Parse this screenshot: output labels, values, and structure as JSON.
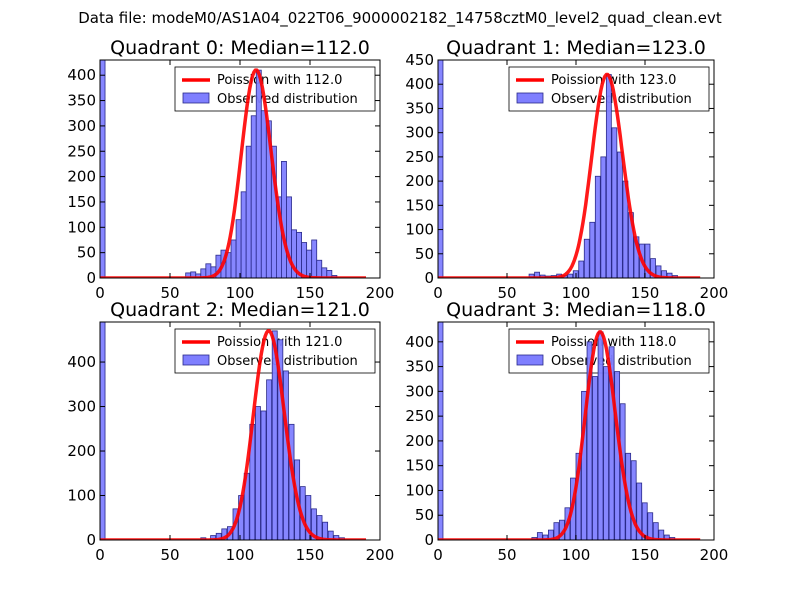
{
  "figure": {
    "title": "Data file: modeM0/AS1A04_022T06_9000002182_14758cztM0_level2_quad_clean.evt"
  },
  "colors": {
    "poisson_line": "#ff0000",
    "hist_fill": "#7f7fff",
    "hist_edge": "#2a2a8a"
  },
  "chart_data": [
    {
      "type": "bar",
      "title": "Quadrant 0: Median=112.0",
      "median": 112.0,
      "xlim": [
        0,
        200
      ],
      "ylim": [
        0,
        430
      ],
      "xticks": [
        0,
        50,
        100,
        150,
        200
      ],
      "yticks": [
        0,
        50,
        100,
        150,
        200,
        250,
        300,
        350,
        400
      ],
      "bin_width": 3.6,
      "first_bin_count": 430,
      "hist": [
        [
          61.2,
          10
        ],
        [
          64.8,
          12
        ],
        [
          68.4,
          8
        ],
        [
          72,
          18
        ],
        [
          75.6,
          28
        ],
        [
          79.2,
          22
        ],
        [
          82.8,
          45
        ],
        [
          86.4,
          55
        ],
        [
          90,
          50
        ],
        [
          93.6,
          75
        ],
        [
          97.2,
          115
        ],
        [
          100.8,
          170
        ],
        [
          104.4,
          260
        ],
        [
          108,
          320
        ],
        [
          111.6,
          410
        ],
        [
          115.2,
          330
        ],
        [
          118.8,
          310
        ],
        [
          122.4,
          260
        ],
        [
          126,
          160
        ],
        [
          129.6,
          230
        ],
        [
          133.2,
          160
        ],
        [
          136.8,
          95
        ],
        [
          140.4,
          90
        ],
        [
          144,
          70
        ],
        [
          147.6,
          55
        ],
        [
          151.2,
          75
        ],
        [
          154.8,
          35
        ],
        [
          158.4,
          20
        ],
        [
          162,
          15
        ],
        [
          165.6,
          5
        ]
      ],
      "legend": [
        "Poission with 112.0",
        "Observed distribution"
      ]
    },
    {
      "type": "bar",
      "title": "Quadrant 1: Median=123.0",
      "median": 123.0,
      "xlim": [
        0,
        200
      ],
      "ylim": [
        0,
        450
      ],
      "xticks": [
        0,
        50,
        100,
        150,
        200
      ],
      "yticks": [
        0,
        50,
        100,
        150,
        200,
        250,
        300,
        350,
        400,
        450
      ],
      "bin_width": 3.6,
      "first_bin_count": 450,
      "hist": [
        [
          66,
          8
        ],
        [
          70,
          12
        ],
        [
          74,
          6
        ],
        [
          78,
          4
        ],
        [
          82,
          5
        ],
        [
          86,
          8
        ],
        [
          90,
          5
        ],
        [
          94,
          8
        ],
        [
          98,
          15
        ],
        [
          102,
          35
        ],
        [
          106,
          80
        ],
        [
          110,
          115
        ],
        [
          114,
          210
        ],
        [
          118,
          250
        ],
        [
          122,
          420
        ],
        [
          126,
          310
        ],
        [
          130,
          260
        ],
        [
          134,
          200
        ],
        [
          138,
          135
        ],
        [
          142,
          85
        ],
        [
          146,
          70
        ],
        [
          150,
          70
        ],
        [
          154,
          40
        ],
        [
          158,
          25
        ],
        [
          162,
          15
        ],
        [
          166,
          10
        ],
        [
          170,
          5
        ]
      ],
      "legend": [
        "Poission with 123.0",
        "Observed distribution"
      ]
    },
    {
      "type": "bar",
      "title": "Quadrant 2: Median=121.0",
      "median": 121.0,
      "xlim": [
        0,
        200
      ],
      "ylim": [
        0,
        490
      ],
      "xticks": [
        0,
        50,
        100,
        150,
        200
      ],
      "yticks": [
        0,
        100,
        200,
        300,
        400
      ],
      "bin_width": 3.6,
      "first_bin_count": 490,
      "hist": [
        [
          72,
          5
        ],
        [
          79,
          10
        ],
        [
          83,
          15
        ],
        [
          87,
          25
        ],
        [
          91,
          30
        ],
        [
          95,
          70
        ],
        [
          99,
          100
        ],
        [
          103,
          150
        ],
        [
          107,
          260
        ],
        [
          111,
          300
        ],
        [
          115,
          290
        ],
        [
          119,
          360
        ],
        [
          123,
          470
        ],
        [
          127,
          450
        ],
        [
          131,
          380
        ],
        [
          135,
          260
        ],
        [
          139,
          180
        ],
        [
          143,
          120
        ],
        [
          147,
          100
        ],
        [
          151,
          70
        ],
        [
          155,
          55
        ],
        [
          159,
          40
        ],
        [
          163,
          20
        ],
        [
          167,
          10
        ],
        [
          171,
          5
        ]
      ],
      "legend": [
        "Poission with 121.0",
        "Observed distribution"
      ]
    },
    {
      "type": "bar",
      "title": "Quadrant 3: Median=118.0",
      "median": 118.0,
      "xlim": [
        0,
        200
      ],
      "ylim": [
        0,
        440
      ],
      "xticks": [
        0,
        50,
        100,
        150,
        200
      ],
      "yticks": [
        0,
        50,
        100,
        150,
        200,
        250,
        300,
        350,
        400
      ],
      "bin_width": 3.6,
      "first_bin_count": 440,
      "hist": [
        [
          68,
          5
        ],
        [
          72,
          15
        ],
        [
          76,
          10
        ],
        [
          80,
          20
        ],
        [
          84,
          35
        ],
        [
          88,
          40
        ],
        [
          92,
          65
        ],
        [
          96,
          125
        ],
        [
          100,
          175
        ],
        [
          104,
          300
        ],
        [
          108,
          400
        ],
        [
          112,
          330
        ],
        [
          116,
          420
        ],
        [
          120,
          350
        ],
        [
          124,
          390
        ],
        [
          128,
          340
        ],
        [
          132,
          275
        ],
        [
          136,
          175
        ],
        [
          140,
          160
        ],
        [
          144,
          115
        ],
        [
          148,
          75
        ],
        [
          152,
          55
        ],
        [
          156,
          35
        ],
        [
          160,
          20
        ],
        [
          164,
          10
        ],
        [
          168,
          5
        ]
      ],
      "legend": [
        "Poission with 118.0",
        "Observed distribution"
      ]
    }
  ]
}
